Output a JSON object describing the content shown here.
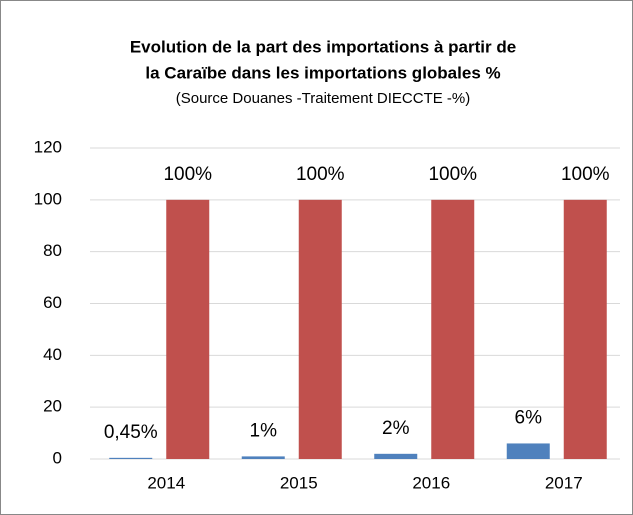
{
  "chart_data": {
    "type": "bar",
    "title": [
      "Evolution de la part des importations à partir de",
      "la Caraïbe dans les importations globales %"
    ],
    "subtitle": "(Source Douanes -Traitement DIECCTE -%)",
    "categories": [
      "2014",
      "2015",
      "2016",
      "2017"
    ],
    "series": [
      {
        "color": "#4f81bd",
        "values": [
          0.45,
          1,
          2,
          6
        ],
        "value_labels": [
          "0,45%",
          "1%",
          "2%",
          "6%"
        ]
      },
      {
        "color": "#c0504d",
        "values": [
          100,
          100,
          100,
          100
        ],
        "value_labels": [
          "100%",
          "100%",
          "100%",
          "100%"
        ]
      }
    ],
    "ylim": [
      0,
      120
    ],
    "yticks": [
      0,
      20,
      40,
      60,
      80,
      100,
      120
    ],
    "grid": true
  }
}
